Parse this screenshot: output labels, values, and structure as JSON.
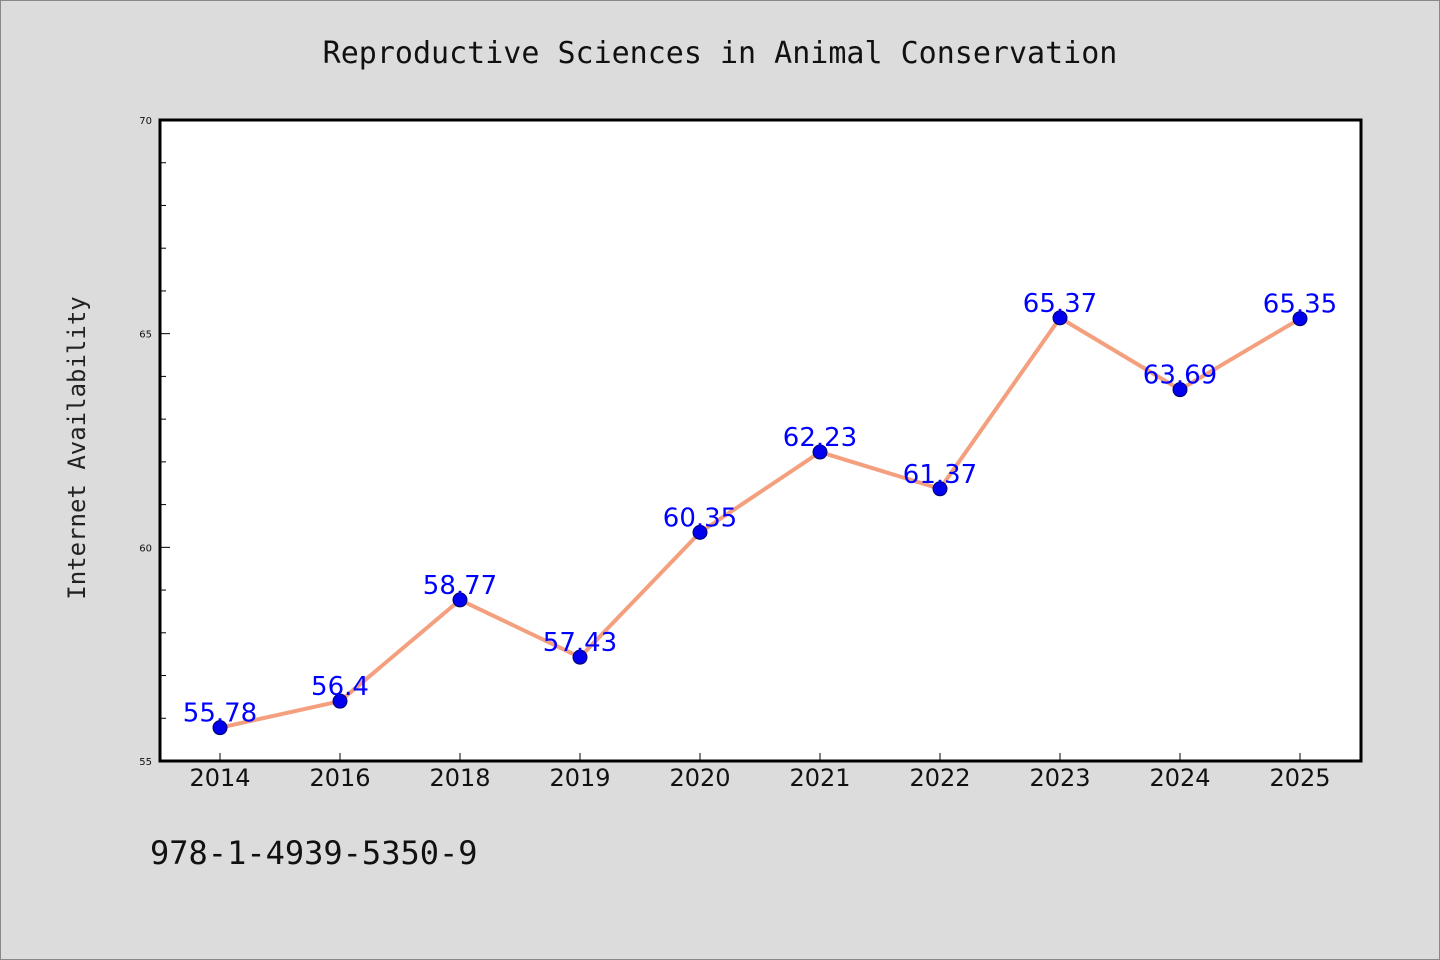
{
  "chart_data": {
    "type": "line",
    "title": "Reproductive Sciences in Animal Conservation",
    "xlabel": "",
    "ylabel": "Internet Availability",
    "categories": [
      "2014",
      "2016",
      "2018",
      "2019",
      "2020",
      "2021",
      "2022",
      "2023",
      "2024",
      "2025"
    ],
    "series": [
      {
        "values": [
          55.78,
          56.4,
          58.77,
          57.43,
          60.35,
          62.23,
          61.37,
          65.37,
          63.69,
          65.35
        ],
        "labels": [
          "55.78",
          "56.4",
          "58.77",
          "57.43",
          "60.35",
          "62.23",
          "61.37",
          "65.37",
          "63.69",
          "65.35"
        ]
      }
    ],
    "ylim": [
      55,
      70
    ],
    "yticks": [
      "55",
      "60",
      "65",
      "70"
    ],
    "grid": false,
    "legend": "none",
    "colors": {
      "line": "#f4a07e",
      "marker": "#0000ee",
      "marker_edge": "#000066",
      "data_label": "#0000ff",
      "plot_background": "#ffffff",
      "figure_background": "#dcdcdc"
    }
  },
  "footer": {
    "isbn": "978-1-4939-5350-9"
  }
}
